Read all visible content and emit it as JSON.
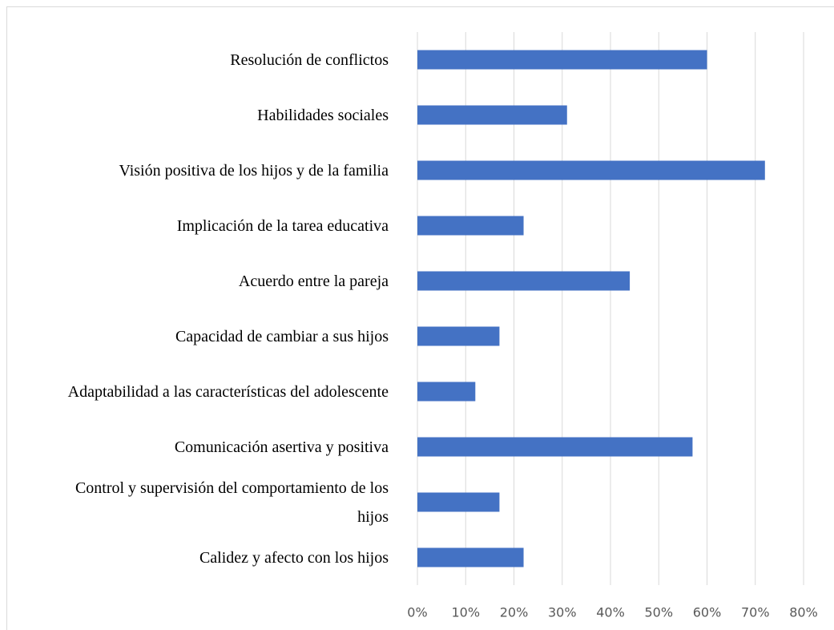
{
  "chart_data": {
    "type": "bar",
    "orientation": "horizontal",
    "categories": [
      "Resolución de conflictos",
      "Habilidades sociales",
      "Visión positiva de los hijos y de la familia",
      "Implicación de la tarea educativa",
      "Acuerdo entre la pareja",
      "Capacidad de cambiar a sus hijos",
      "Adaptabilidad a las características del adolescente",
      "Comunicación asertiva y positiva",
      "Control y supervisión del comportamiento de los hijos",
      "Calidez y afecto con los hijos"
    ],
    "values": [
      60,
      31,
      72,
      22,
      44,
      17,
      12,
      57,
      17,
      22
    ],
    "color": "#4472c4",
    "xlim": [
      0,
      80
    ],
    "xticks": [
      {
        "value": 0,
        "label": "0%"
      },
      {
        "value": 10,
        "label": "10%"
      },
      {
        "value": 20,
        "label": "20%"
      },
      {
        "value": 30,
        "label": "30%"
      },
      {
        "value": 40,
        "label": "40%"
      },
      {
        "value": 50,
        "label": "50%"
      },
      {
        "value": 60,
        "label": "60%"
      },
      {
        "value": 70,
        "label": "70%"
      },
      {
        "value": 80,
        "label": "80%"
      }
    ],
    "grid": true
  }
}
